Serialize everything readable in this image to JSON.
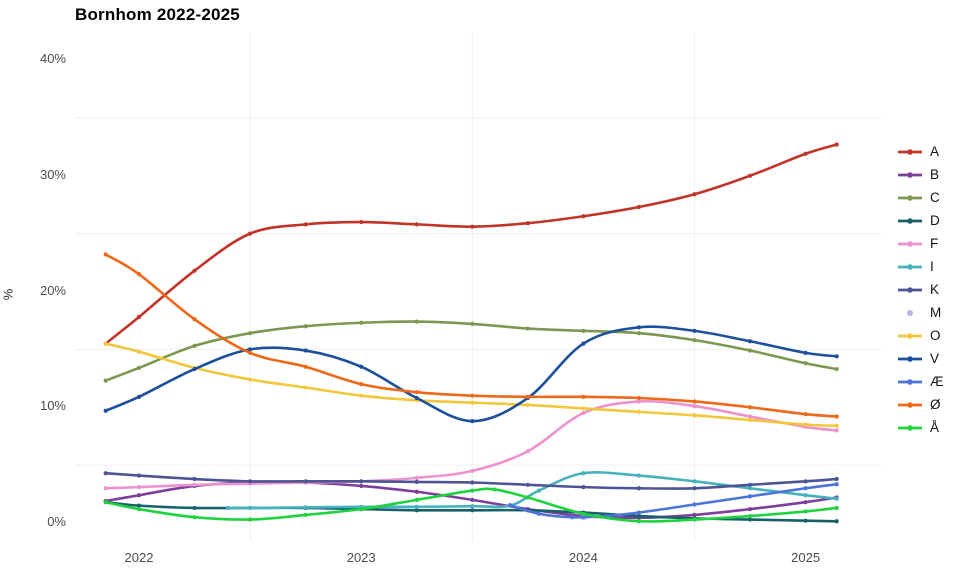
{
  "page": {
    "background": "#ffffff"
  },
  "chart_data": {
    "type": "line",
    "title": "Bornhom 2022-2025",
    "xlabel": "",
    "ylabel": "%",
    "xlim": [
      2021.85,
      2025.15
    ],
    "ylim": [
      0,
      43.5
    ],
    "x_ticks": [
      {
        "label": "2022",
        "year": 2022
      },
      {
        "label": "2023",
        "year": 2023
      },
      {
        "label": "2024",
        "year": 2024
      },
      {
        "label": "2025",
        "year": 2025
      }
    ],
    "y_ticks": [
      {
        "label": "0%",
        "pct": 0
      },
      {
        "label": "10%",
        "pct": 10
      },
      {
        "label": "20%",
        "pct": 20
      },
      {
        "label": "30%",
        "pct": 30
      },
      {
        "label": "40%",
        "pct": 40
      }
    ],
    "grid": {
      "v_years": [
        2022.5,
        2023.5,
        2024.5
      ],
      "h_pcts": [
        5,
        15,
        25,
        35
      ],
      "color": "#edeff1"
    },
    "legend_position": "right",
    "series": [
      {
        "name": "A",
        "color": "#c2342a",
        "marker": "line+dot",
        "points": [
          [
            2021.85,
            15.5
          ],
          [
            2022.0,
            17.8
          ],
          [
            2022.25,
            21.8
          ],
          [
            2022.5,
            25.0
          ],
          [
            2022.75,
            25.8
          ],
          [
            2023.0,
            26.0
          ],
          [
            2023.25,
            25.8
          ],
          [
            2023.5,
            25.6
          ],
          [
            2023.75,
            25.9
          ],
          [
            2024.0,
            26.5
          ],
          [
            2024.25,
            27.3
          ],
          [
            2024.5,
            28.4
          ],
          [
            2024.75,
            30.0
          ],
          [
            2025.0,
            31.9
          ],
          [
            2025.14,
            32.7
          ]
        ]
      },
      {
        "name": "B",
        "color": "#7e3f9c",
        "marker": "line+dot",
        "points": [
          [
            2021.85,
            1.9
          ],
          [
            2022.0,
            2.4
          ],
          [
            2022.25,
            3.2
          ],
          [
            2022.5,
            3.5
          ],
          [
            2022.75,
            3.5
          ],
          [
            2023.0,
            3.2
          ],
          [
            2023.25,
            2.7
          ],
          [
            2023.5,
            2.0
          ],
          [
            2023.75,
            1.2
          ],
          [
            2024.0,
            0.6
          ],
          [
            2024.25,
            0.45
          ],
          [
            2024.5,
            0.7
          ],
          [
            2024.75,
            1.2
          ],
          [
            2025.0,
            1.8
          ],
          [
            2025.14,
            2.2
          ]
        ]
      },
      {
        "name": "C",
        "color": "#7c9850",
        "marker": "line+dot",
        "points": [
          [
            2021.85,
            12.3
          ],
          [
            2022.0,
            13.4
          ],
          [
            2022.25,
            15.3
          ],
          [
            2022.5,
            16.4
          ],
          [
            2022.75,
            17.0
          ],
          [
            2023.0,
            17.3
          ],
          [
            2023.25,
            17.4
          ],
          [
            2023.5,
            17.2
          ],
          [
            2023.75,
            16.8
          ],
          [
            2024.0,
            16.6
          ],
          [
            2024.25,
            16.4
          ],
          [
            2024.5,
            15.8
          ],
          [
            2024.75,
            14.9
          ],
          [
            2025.0,
            13.8
          ],
          [
            2025.14,
            13.3
          ]
        ]
      },
      {
        "name": "D",
        "color": "#17606b",
        "marker": "line+dot",
        "points": [
          [
            2021.85,
            1.8
          ],
          [
            2022.0,
            1.5
          ],
          [
            2022.25,
            1.3
          ],
          [
            2022.5,
            1.3
          ],
          [
            2022.75,
            1.3
          ],
          [
            2023.0,
            1.2
          ],
          [
            2023.25,
            1.1
          ],
          [
            2023.5,
            1.1
          ],
          [
            2023.75,
            1.1
          ],
          [
            2024.0,
            0.9
          ],
          [
            2024.25,
            0.6
          ],
          [
            2024.5,
            0.4
          ],
          [
            2024.75,
            0.3
          ],
          [
            2025.0,
            0.2
          ],
          [
            2025.14,
            0.15
          ]
        ]
      },
      {
        "name": "F",
        "color": "#ee92cf",
        "marker": "line+dot",
        "points": [
          [
            2021.85,
            3.0
          ],
          [
            2022.0,
            3.1
          ],
          [
            2022.25,
            3.3
          ],
          [
            2022.5,
            3.4
          ],
          [
            2022.75,
            3.5
          ],
          [
            2023.0,
            3.6
          ],
          [
            2023.25,
            3.9
          ],
          [
            2023.5,
            4.5
          ],
          [
            2023.75,
            6.2
          ],
          [
            2024.0,
            9.5
          ],
          [
            2024.25,
            10.5
          ],
          [
            2024.5,
            10.1
          ],
          [
            2024.75,
            9.2
          ],
          [
            2025.0,
            8.3
          ],
          [
            2025.14,
            8.0
          ]
        ]
      },
      {
        "name": "I",
        "color": "#45b2bd",
        "marker": "line+dot",
        "points": [
          [
            2022.4,
            1.3
          ],
          [
            2022.5,
            1.3
          ],
          [
            2022.75,
            1.35
          ],
          [
            2023.0,
            1.4
          ],
          [
            2023.25,
            1.4
          ],
          [
            2023.5,
            1.45
          ],
          [
            2023.67,
            1.5
          ],
          [
            2023.8,
            2.8
          ],
          [
            2024.0,
            4.3
          ],
          [
            2024.25,
            4.1
          ],
          [
            2024.5,
            3.6
          ],
          [
            2024.75,
            3.0
          ],
          [
            2025.0,
            2.4
          ],
          [
            2025.14,
            2.1
          ]
        ]
      },
      {
        "name": "K",
        "color": "#4d5495",
        "marker": "line+dot",
        "points": [
          [
            2021.85,
            4.3
          ],
          [
            2022.0,
            4.1
          ],
          [
            2022.25,
            3.8
          ],
          [
            2022.5,
            3.6
          ],
          [
            2022.75,
            3.6
          ],
          [
            2023.0,
            3.6
          ],
          [
            2023.25,
            3.55
          ],
          [
            2023.5,
            3.5
          ],
          [
            2023.75,
            3.3
          ],
          [
            2024.0,
            3.1
          ],
          [
            2024.25,
            3.0
          ],
          [
            2024.5,
            3.0
          ],
          [
            2024.75,
            3.3
          ],
          [
            2025.0,
            3.6
          ],
          [
            2025.14,
            3.8
          ]
        ]
      },
      {
        "name": "M",
        "color": "#b9b2e9",
        "marker": "dot",
        "points": [
          [
            2024.0,
            0.5
          ]
        ]
      },
      {
        "name": "O",
        "color": "#f3c73b",
        "marker": "line+dot",
        "points": [
          [
            2021.85,
            15.5
          ],
          [
            2022.0,
            14.8
          ],
          [
            2022.25,
            13.4
          ],
          [
            2022.5,
            12.4
          ],
          [
            2022.75,
            11.7
          ],
          [
            2023.0,
            11.0
          ],
          [
            2023.25,
            10.6
          ],
          [
            2023.5,
            10.4
          ],
          [
            2023.75,
            10.2
          ],
          [
            2024.0,
            9.9
          ],
          [
            2024.25,
            9.6
          ],
          [
            2024.5,
            9.3
          ],
          [
            2024.75,
            8.9
          ],
          [
            2025.0,
            8.5
          ],
          [
            2025.14,
            8.4
          ]
        ]
      },
      {
        "name": "V",
        "color": "#1c4f9c",
        "marker": "line+dot",
        "points": [
          [
            2021.85,
            9.7
          ],
          [
            2022.0,
            10.9
          ],
          [
            2022.25,
            13.3
          ],
          [
            2022.5,
            15.0
          ],
          [
            2022.75,
            14.9
          ],
          [
            2023.0,
            13.5
          ],
          [
            2023.25,
            10.8
          ],
          [
            2023.5,
            8.8
          ],
          [
            2023.75,
            10.8
          ],
          [
            2024.0,
            15.5
          ],
          [
            2024.25,
            16.9
          ],
          [
            2024.5,
            16.6
          ],
          [
            2024.75,
            15.7
          ],
          [
            2025.0,
            14.7
          ],
          [
            2025.14,
            14.4
          ]
        ]
      },
      {
        "name": "Æ",
        "color": "#4b73d9",
        "marker": "line+dot",
        "points": [
          [
            2023.67,
            1.55
          ],
          [
            2023.8,
            0.8
          ],
          [
            2023.95,
            0.5
          ],
          [
            2024.1,
            0.6
          ],
          [
            2024.25,
            0.9
          ],
          [
            2024.5,
            1.6
          ],
          [
            2024.75,
            2.3
          ],
          [
            2025.0,
            3.0
          ],
          [
            2025.14,
            3.35
          ]
        ]
      },
      {
        "name": "Ø",
        "color": "#ee6817",
        "marker": "line+dot",
        "points": [
          [
            2021.85,
            23.2
          ],
          [
            2022.0,
            21.5
          ],
          [
            2022.25,
            17.6
          ],
          [
            2022.5,
            14.7
          ],
          [
            2022.75,
            13.5
          ],
          [
            2023.0,
            12.0
          ],
          [
            2023.25,
            11.3
          ],
          [
            2023.5,
            11.0
          ],
          [
            2023.75,
            10.9
          ],
          [
            2024.0,
            10.9
          ],
          [
            2024.25,
            10.8
          ],
          [
            2024.5,
            10.5
          ],
          [
            2024.75,
            10.0
          ],
          [
            2025.0,
            9.4
          ],
          [
            2025.14,
            9.2
          ]
        ]
      },
      {
        "name": "Å",
        "color": "#1fd33f",
        "marker": "line+dot",
        "points": [
          [
            2021.85,
            1.8
          ],
          [
            2022.0,
            1.2
          ],
          [
            2022.25,
            0.5
          ],
          [
            2022.5,
            0.3
          ],
          [
            2022.75,
            0.7
          ],
          [
            2023.0,
            1.2
          ],
          [
            2023.25,
            2.0
          ],
          [
            2023.5,
            2.8
          ],
          [
            2023.6,
            2.9
          ],
          [
            2023.75,
            2.2
          ],
          [
            2024.0,
            0.8
          ],
          [
            2024.25,
            0.15
          ],
          [
            2024.5,
            0.3
          ],
          [
            2024.75,
            0.6
          ],
          [
            2025.0,
            1.0
          ],
          [
            2025.14,
            1.3
          ]
        ]
      }
    ]
  }
}
